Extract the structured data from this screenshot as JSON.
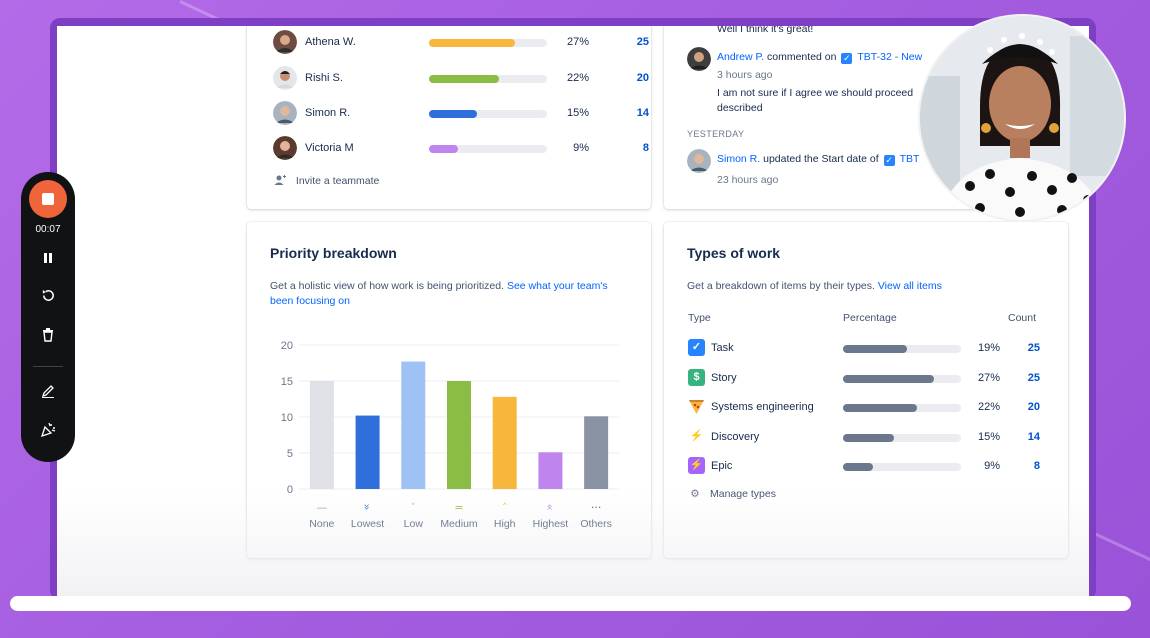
{
  "members": [
    {
      "name": "Athena W.",
      "percent_label": "27%",
      "percent": 27,
      "count": "25",
      "color": "#f6b73c"
    },
    {
      "name": "Rishi S.",
      "percent_label": "22%",
      "percent": 22,
      "count": "20",
      "color": "#8bbd44"
    },
    {
      "name": "Simon R.",
      "percent_label": "15%",
      "percent": 15,
      "count": "14",
      "color": "#2f6fdb"
    },
    {
      "name": "Victoria M",
      "percent_label": "9%",
      "percent": 9,
      "count": "8",
      "color": "#c084ee"
    }
  ],
  "invite_label": "Invite a teammate",
  "activity": {
    "top_comment": "Well I think it's great!",
    "entry1": {
      "user": "Andrew P.",
      "action": " commented on ",
      "issue": "TBT-32 - New",
      "time": "3 hours ago",
      "comment": "I am not sure if I agree we should proceed",
      "comment2": "described"
    },
    "section_label": "YESTERDAY",
    "entry2": {
      "user": "Simon R.",
      "action": " updated the Start date of ",
      "issue": "TBT",
      "time": "23 hours ago"
    }
  },
  "priority": {
    "title": "Priority breakdown",
    "desc": "Get a holistic view of how work is being prioritized. ",
    "desc_link": "See what your team's been focusing on"
  },
  "types": {
    "title": "Types of work",
    "desc": "Get a breakdown of items by their types. ",
    "desc_link": "View all items",
    "col_type": "Type",
    "col_pct": "Percentage",
    "col_count": "Count",
    "rows": [
      {
        "label": "Task",
        "percent_label": "19%",
        "percent": 19,
        "count": "25",
        "icon": "check-icon",
        "color": "#2684ff"
      },
      {
        "label": "Story",
        "percent_label": "27%",
        "percent": 27,
        "count": "25",
        "icon": "dollar-icon",
        "color": "#36b37e"
      },
      {
        "label": "Systems engineering",
        "percent_label": "22%",
        "percent": 22,
        "count": "20",
        "icon": "pizza-icon",
        "color": "#f6b73c"
      },
      {
        "label": "Discovery",
        "percent_label": "15%",
        "percent": 15,
        "count": "14",
        "icon": "lightning-icon",
        "color": "#ffffff"
      },
      {
        "label": "Epic",
        "percent_label": "9%",
        "percent": 9,
        "count": "8",
        "icon": "bolt-icon",
        "color": "#a664ff"
      }
    ],
    "manage_label": "Manage types"
  },
  "recorder": {
    "timer": "00:07"
  },
  "chart_data": {
    "type": "bar",
    "title": "Priority breakdown",
    "categories": [
      "None",
      "Lowest",
      "Low",
      "Medium",
      "High",
      "Highest",
      "Others"
    ],
    "values": [
      15,
      10.2,
      17.7,
      15,
      12.8,
      5.1,
      10.1
    ],
    "colors": [
      "#dfe1e6",
      "#2f6fdb",
      "#9fc2f5",
      "#8bbd44",
      "#f6b73c",
      "#c084ee",
      "#8993a4"
    ],
    "ylim": [
      0,
      20
    ],
    "yticks": [
      "0",
      "5",
      "10",
      "15",
      "20"
    ],
    "xlabel": "",
    "ylabel": ""
  }
}
